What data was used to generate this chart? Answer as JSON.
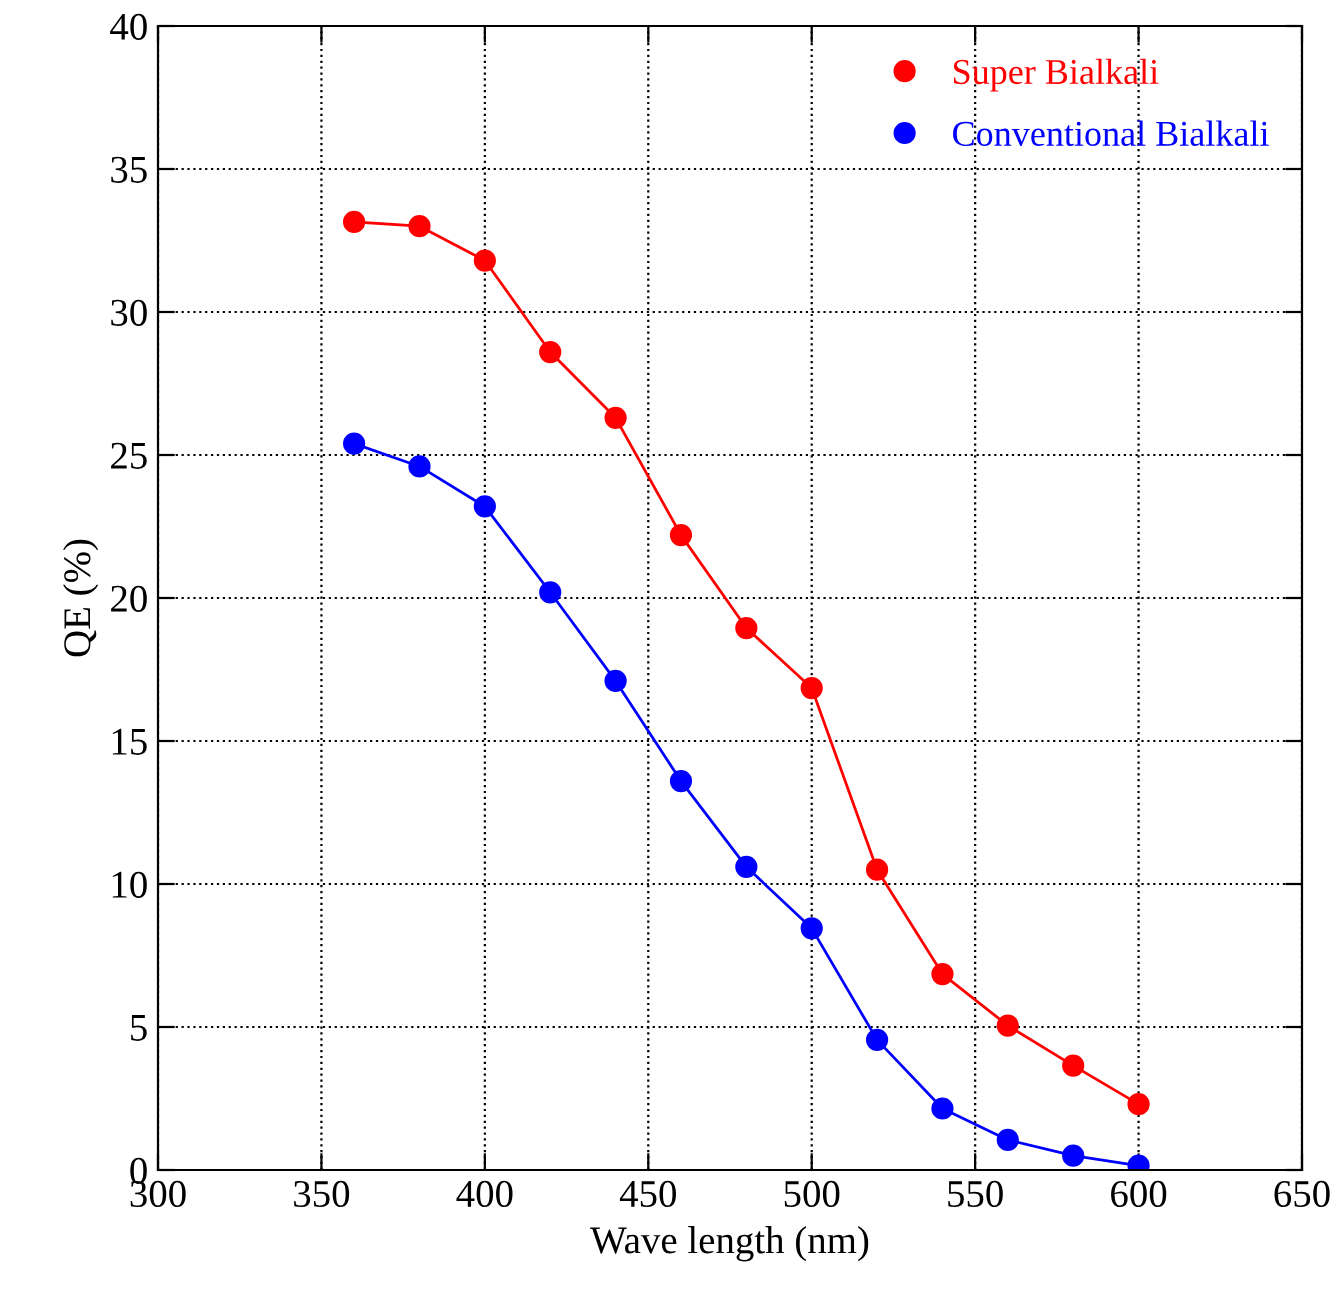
{
  "chart_data": {
    "type": "line",
    "xlabel": "Wave length (nm)",
    "ylabel": "QE (%)",
    "x": [
      360,
      380,
      400,
      420,
      440,
      460,
      480,
      500,
      520,
      540,
      560,
      580,
      600
    ],
    "series": [
      {
        "name": "Super Bialkali",
        "color": "#ff0000",
        "values": [
          33.15,
          33.0,
          31.8,
          28.6,
          26.3,
          22.2,
          18.95,
          16.85,
          10.5,
          6.85,
          5.05,
          3.65,
          2.3
        ]
      },
      {
        "name": "Conventional Bialkali",
        "color": "#0000ff",
        "values": [
          25.4,
          24.6,
          23.2,
          20.2,
          17.1,
          13.6,
          10.6,
          8.45,
          4.55,
          2.15,
          1.05,
          0.5,
          0.15
        ]
      }
    ],
    "xlim": [
      300,
      650
    ],
    "xticks": [
      300,
      350,
      400,
      450,
      500,
      550,
      600,
      650
    ],
    "ylim": [
      0,
      40
    ],
    "yticks": [
      0,
      5,
      10,
      15,
      20,
      25,
      30,
      35,
      40
    ],
    "grid": true,
    "legend": "top right",
    "marker": "circle",
    "line_style": "solid"
  }
}
